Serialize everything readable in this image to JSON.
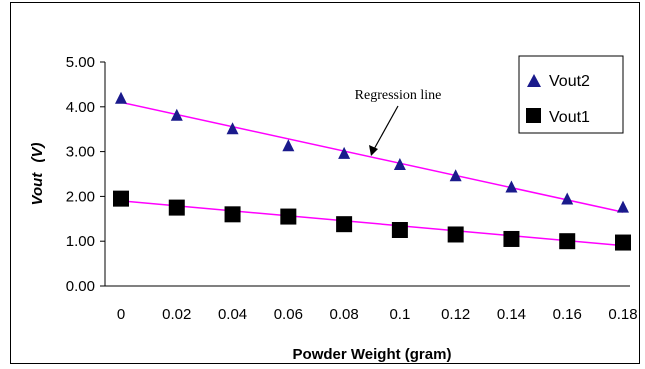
{
  "chart_data": {
    "type": "scatter",
    "title": "",
    "xlabel": "Powder Weight (gram)",
    "ylabel": "Vout",
    "ylabel_unit": "(V)",
    "x": [
      0,
      0.02,
      0.04,
      0.06,
      0.08,
      0.1,
      0.12,
      0.14,
      0.16,
      0.18
    ],
    "x_tick_labels": [
      "0",
      "0.02",
      "0.04",
      "0.06",
      "0.08",
      "0.1",
      "0.12",
      "0.14",
      "0.16",
      "0.18"
    ],
    "y_tick_labels": [
      "0.00",
      "1.00",
      "2.00",
      "3.00",
      "4.00",
      "5.00"
    ],
    "xlim": [
      0,
      0.18
    ],
    "ylim": [
      0,
      5
    ],
    "grid": false,
    "legend_position": "top-right",
    "series": [
      {
        "name": "Vout2",
        "marker": "triangle",
        "color": "#1a1a8c",
        "values": [
          4.18,
          3.8,
          3.5,
          3.12,
          2.95,
          2.7,
          2.45,
          2.2,
          1.93,
          1.75
        ],
        "regression": [
          4.1,
          1.65
        ]
      },
      {
        "name": "Vout1",
        "marker": "square",
        "color": "#000000",
        "values": [
          1.95,
          1.75,
          1.6,
          1.55,
          1.38,
          1.25,
          1.15,
          1.05,
          1.0,
          0.97
        ],
        "regression": [
          1.9,
          0.9
        ]
      }
    ],
    "regression_color": "#ff00ff",
    "annotations": [
      {
        "text": "Regression line",
        "target_series": "Vout2",
        "target_x": 0.09
      }
    ]
  }
}
